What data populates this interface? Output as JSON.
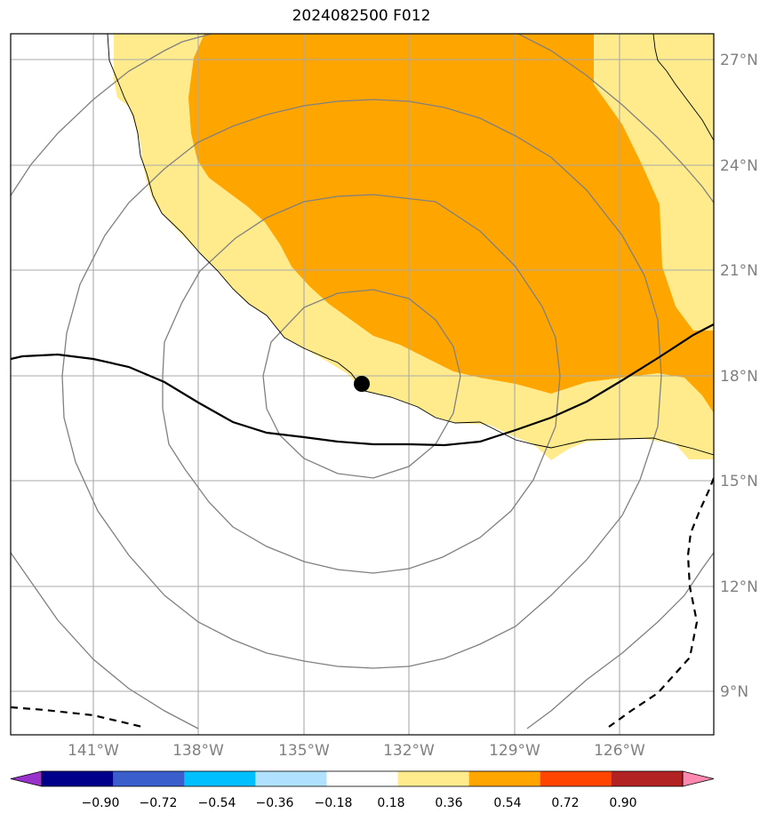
{
  "title": "2024082500 F012",
  "map": {
    "lat_labels": [
      "27°N",
      "24°N",
      "21°N",
      "18°N",
      "15°N",
      "12°N",
      "9°N"
    ],
    "lon_labels": [
      "141°W",
      "138°W",
      "135°W",
      "132°W",
      "129°W",
      "126°W"
    ],
    "storm_center": {
      "lon": "133.4°W",
      "lat": "17.7°N"
    }
  },
  "colorbar": {
    "ticks": [
      "−0.90",
      "−0.72",
      "−0.54",
      "−0.36",
      "−0.18",
      "0.18",
      "0.36",
      "0.54",
      "0.72",
      "0.90"
    ],
    "colors": [
      "#9932cc",
      "#00008b",
      "#3a5fcd",
      "#00bfff",
      "#b0e2ff",
      "#ffffff",
      "#ffeb8c",
      "#ffa500",
      "#ff4500",
      "#b22222",
      "#ff88b0"
    ]
  },
  "colors": {
    "shade_light": "#ffeb8c",
    "shade_dark": "#ffa500",
    "grid": "#a9a9a9",
    "contour": "#808080"
  }
}
